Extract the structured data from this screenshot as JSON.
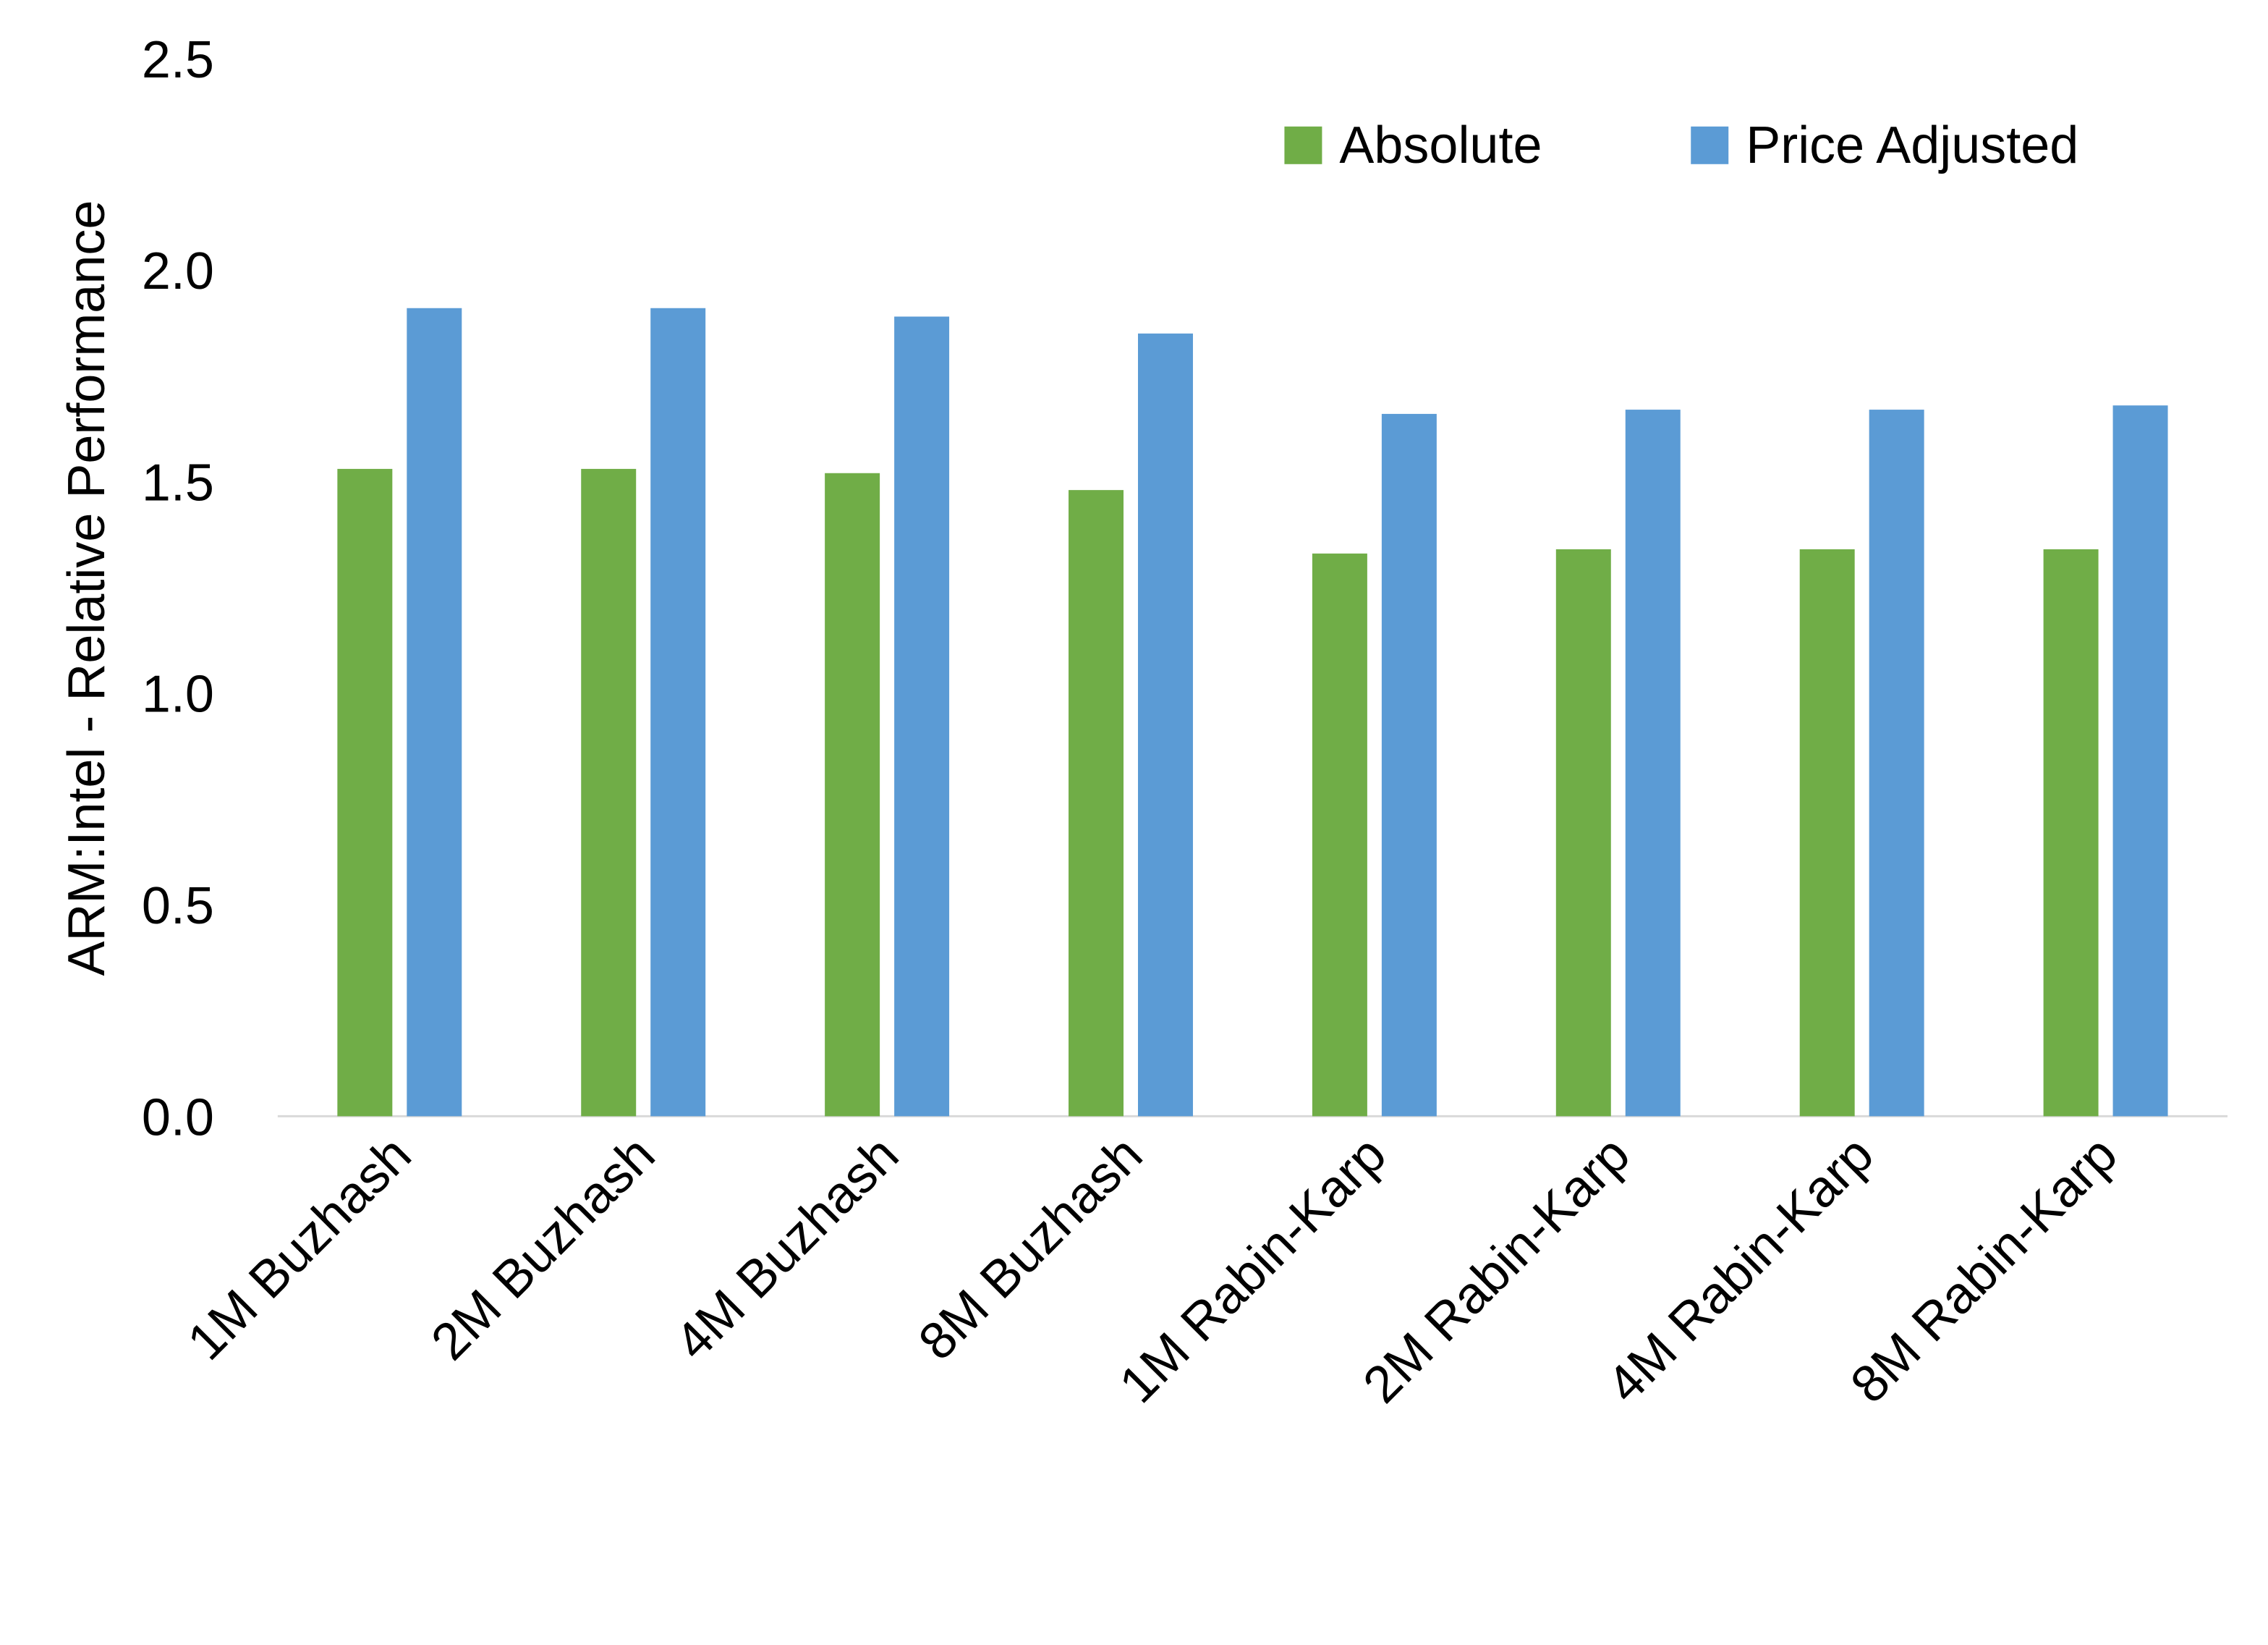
{
  "chart_data": {
    "type": "bar",
    "title": "",
    "xlabel": "",
    "ylabel": "ARM:Intel - Relative Performance",
    "ylim": [
      0,
      2.5
    ],
    "yticks": [
      "0.0",
      "0.5",
      "1.0",
      "1.5",
      "2.0",
      "2.5"
    ],
    "grid": false,
    "legend_position": "top-right",
    "categories": [
      "1M Buzhash",
      "2M Buzhash",
      "4M Buzhash",
      "8M Buzhash",
      "1M Rabin-Karp",
      "2M Rabin-Karp",
      "4M Rabin-Karp",
      "8M Rabin-Karp"
    ],
    "series": [
      {
        "name": "Absolute",
        "color": "#70AD47",
        "values": [
          1.53,
          1.53,
          1.52,
          1.48,
          1.33,
          1.34,
          1.34,
          1.34
        ]
      },
      {
        "name": "Price Adjusted",
        "color": "#5B9BD5",
        "values": [
          1.91,
          1.91,
          1.89,
          1.85,
          1.66,
          1.67,
          1.67,
          1.68
        ]
      }
    ]
  }
}
